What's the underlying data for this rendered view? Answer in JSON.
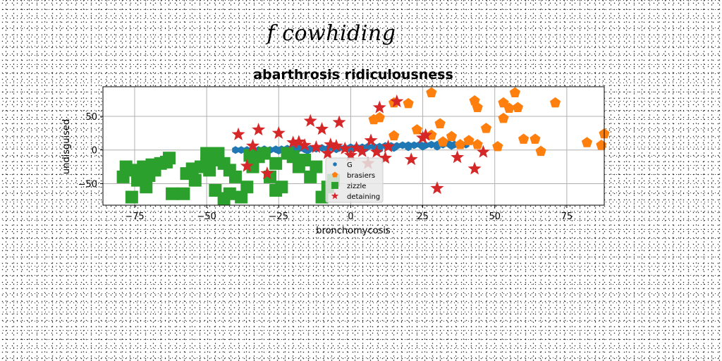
{
  "suptitle": "f cowhiding",
  "chart_data": {
    "type": "scatter",
    "title": "abarthrosis ridiculousness",
    "xlabel": "bronchomycosis",
    "ylabel": "undisguised",
    "xlim": [
      -86,
      88
    ],
    "ylim": [
      -82,
      94
    ],
    "xticks": [
      -75,
      -50,
      -25,
      0,
      25,
      50,
      75
    ],
    "yticks": [
      -50,
      0,
      50
    ],
    "grid": true,
    "legend_position": "lower-center",
    "series": [
      {
        "name": "G",
        "marker": "hexagon",
        "color": "#1f77b4",
        "points": [
          [
            -40,
            0
          ],
          [
            -38,
            0
          ],
          [
            -36,
            0
          ],
          [
            -34,
            1
          ],
          [
            -32,
            0
          ],
          [
            -30,
            1
          ],
          [
            -28,
            0
          ],
          [
            -26,
            1
          ],
          [
            -24,
            1
          ],
          [
            -22,
            2
          ],
          [
            -20,
            1
          ],
          [
            -18,
            2
          ],
          [
            -16,
            1
          ],
          [
            -14,
            2
          ],
          [
            -12,
            2
          ],
          [
            -10,
            3
          ],
          [
            -8,
            2
          ],
          [
            -6,
            3
          ],
          [
            -4,
            3
          ],
          [
            -2,
            3
          ],
          [
            0,
            4
          ],
          [
            2,
            4
          ],
          [
            4,
            4
          ],
          [
            6,
            5
          ],
          [
            8,
            5
          ],
          [
            10,
            5
          ],
          [
            12,
            6
          ],
          [
            14,
            6
          ],
          [
            16,
            6
          ],
          [
            18,
            7
          ],
          [
            20,
            7
          ],
          [
            22,
            7
          ],
          [
            24,
            8
          ],
          [
            26,
            7
          ],
          [
            28,
            8
          ],
          [
            30,
            8
          ],
          [
            32,
            8
          ],
          [
            34,
            9
          ],
          [
            36,
            8
          ],
          [
            38,
            9
          ],
          [
            40,
            8
          ],
          [
            -35,
            -2
          ],
          [
            -25,
            -1
          ],
          [
            -15,
            -1
          ],
          [
            -5,
            1
          ],
          [
            5,
            2
          ],
          [
            15,
            3
          ],
          [
            25,
            5
          ],
          [
            35,
            6
          ],
          [
            10,
            1
          ],
          [
            20,
            4
          ],
          [
            30,
            5
          ],
          [
            0,
            1
          ]
        ]
      },
      {
        "name": "brasiers",
        "marker": "pentagon",
        "color": "#ff7f0e",
        "points": [
          [
            28,
            85
          ],
          [
            57,
            85
          ],
          [
            43,
            73
          ],
          [
            44,
            63
          ],
          [
            53,
            70
          ],
          [
            55,
            62
          ],
          [
            58,
            63
          ],
          [
            71,
            70
          ],
          [
            15,
            70
          ],
          [
            20,
            69
          ],
          [
            10,
            48
          ],
          [
            15,
            21
          ],
          [
            8,
            45
          ],
          [
            23,
            30
          ],
          [
            31,
            39
          ],
          [
            35,
            20
          ],
          [
            32,
            12
          ],
          [
            47,
            32
          ],
          [
            53,
            47
          ],
          [
            60,
            16
          ],
          [
            64,
            16
          ],
          [
            66,
            -2
          ],
          [
            82,
            11
          ],
          [
            87,
            7
          ],
          [
            88,
            24
          ],
          [
            51,
            5
          ],
          [
            44,
            8
          ],
          [
            41,
            14
          ],
          [
            28,
            22
          ],
          [
            38,
            8
          ]
        ]
      },
      {
        "name": "zizzle",
        "marker": "square",
        "color": "#2ca02c",
        "points": [
          [
            -78,
            -25
          ],
          [
            -79,
            -40
          ],
          [
            -76,
            -30
          ],
          [
            -74,
            -45
          ],
          [
            -73,
            -35
          ],
          [
            -72,
            -25
          ],
          [
            -70,
            -38
          ],
          [
            -71,
            -55
          ],
          [
            -68,
            -30
          ],
          [
            -66,
            -20
          ],
          [
            -64,
            -18
          ],
          [
            -63,
            -12
          ],
          [
            -62,
            -65
          ],
          [
            -57,
            -35
          ],
          [
            -55,
            -28
          ],
          [
            -54,
            -45
          ],
          [
            -52,
            -25
          ],
          [
            -50,
            -20
          ],
          [
            -49,
            -30
          ],
          [
            -48,
            -15
          ],
          [
            -47,
            -60
          ],
          [
            -46,
            -5
          ],
          [
            -44,
            -72
          ],
          [
            -42,
            -65
          ],
          [
            -40,
            -40
          ],
          [
            -38,
            -70
          ],
          [
            -36,
            -55
          ],
          [
            -34,
            -25
          ],
          [
            -32,
            -10
          ],
          [
            -30,
            -5
          ],
          [
            -28,
            -40
          ],
          [
            -26,
            -60
          ],
          [
            -24,
            -55
          ],
          [
            -22,
            -5
          ],
          [
            -20,
            -10
          ],
          [
            -18,
            -25
          ],
          [
            -16,
            -15
          ],
          [
            -14,
            -40
          ],
          [
            -12,
            -25
          ],
          [
            -10,
            -70
          ],
          [
            -8,
            -55
          ],
          [
            -6,
            -45
          ],
          [
            -44,
            -20
          ],
          [
            -50,
            -5
          ],
          [
            -58,
            -65
          ],
          [
            -76,
            -70
          ],
          [
            -69,
            -22
          ],
          [
            -42,
            -30
          ],
          [
            -35,
            -8
          ],
          [
            -26,
            -20
          ]
        ]
      },
      {
        "name": "detaining",
        "marker": "star",
        "color": "#d62728",
        "points": [
          [
            -39,
            23
          ],
          [
            -32,
            30
          ],
          [
            -25,
            25
          ],
          [
            -34,
            6
          ],
          [
            -14,
            43
          ],
          [
            -10,
            31
          ],
          [
            -4,
            41
          ],
          [
            -20,
            11
          ],
          [
            -18,
            12
          ],
          [
            -16,
            7
          ],
          [
            -12,
            4
          ],
          [
            -7,
            8
          ],
          [
            -5,
            6
          ],
          [
            -2,
            2
          ],
          [
            2,
            3
          ],
          [
            4,
            -2
          ],
          [
            7,
            14
          ],
          [
            9,
            -3
          ],
          [
            13,
            5
          ],
          [
            16,
            72
          ],
          [
            10,
            63
          ],
          [
            25,
            18
          ],
          [
            26,
            22
          ],
          [
            21,
            -14
          ],
          [
            30,
            -57
          ],
          [
            37,
            -11
          ],
          [
            43,
            -28
          ],
          [
            46,
            -3
          ],
          [
            -36,
            -24
          ],
          [
            -29,
            -35
          ],
          [
            -8,
            -5
          ],
          [
            0,
            -8
          ],
          [
            6,
            -20
          ],
          [
            12,
            -12
          ]
        ]
      }
    ]
  }
}
